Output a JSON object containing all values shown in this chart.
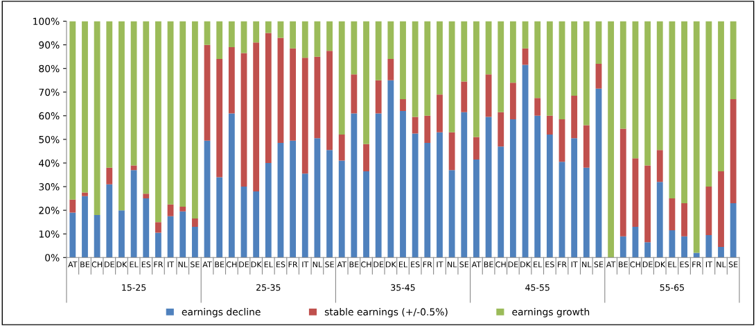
{
  "chart_data": {
    "type": "bar",
    "stacked": true,
    "categories": [
      "AT",
      "BE",
      "CH",
      "DE",
      "DK",
      "EL",
      "ES",
      "FR",
      "IT",
      "NL",
      "SE",
      "AT",
      "BE",
      "CH",
      "DE",
      "DK",
      "EL",
      "ES",
      "FR",
      "IT",
      "NL",
      "SE",
      "AT",
      "BE",
      "CH",
      "DE",
      "DK",
      "EL",
      "ES",
      "FR",
      "IT",
      "NL",
      "SE",
      "AT",
      "BE",
      "CH",
      "DE",
      "DK",
      "EL",
      "ES",
      "FR",
      "IT",
      "NL",
      "SE",
      "AT",
      "BE",
      "CH",
      "DE",
      "DK",
      "EL",
      "ES",
      "FR",
      "IT",
      "NL",
      "SE"
    ],
    "series": [
      {
        "name": "earnings decline",
        "color": "#4f81bd",
        "values": [
          19,
          26,
          18,
          31,
          20,
          37,
          25,
          10.5,
          17.5,
          19.5,
          13,
          49.5,
          34,
          61,
          30,
          28,
          40,
          48.5,
          49.5,
          35.5,
          50.5,
          45.5,
          41,
          61,
          36.5,
          61,
          75,
          62,
          52.5,
          48.5,
          53,
          37,
          61.5,
          41.5,
          59.5,
          47,
          58.5,
          81.5,
          60,
          52,
          40.5,
          50.5,
          38,
          71.5,
          0,
          9,
          13,
          6.5,
          32,
          11.5,
          9,
          2,
          9.5,
          4.5,
          23
        ]
      },
      {
        "name": "stable earnings (+/-0.5%)",
        "color": "#c0504d",
        "values": [
          5.5,
          1.5,
          0,
          7,
          0,
          2,
          2,
          4.5,
          5,
          2,
          3.5,
          40.5,
          50,
          28,
          56.5,
          63,
          55,
          44.5,
          39,
          49,
          34.5,
          42,
          11,
          16.5,
          11.5,
          14,
          9,
          5,
          7,
          11.5,
          16,
          16,
          13,
          9.5,
          18,
          14.5,
          15.5,
          7,
          7.5,
          8,
          18,
          18,
          18,
          10.5,
          0,
          45.5,
          29,
          32.5,
          13.5,
          13.5,
          14,
          0,
          20.5,
          32,
          44
        ]
      },
      {
        "name": "earnings growth",
        "color": "#9bbb59",
        "values": [
          75.5,
          72.5,
          82,
          62,
          80,
          61,
          73,
          85,
          77.5,
          78.5,
          83.5,
          10,
          16,
          11,
          13.5,
          9,
          5,
          7,
          11.5,
          15.5,
          15,
          12.5,
          48,
          22.5,
          52,
          25,
          16,
          33,
          40.5,
          40,
          31,
          47,
          25.5,
          49,
          22.5,
          38.5,
          26,
          11.5,
          32.5,
          40,
          41.5,
          31.5,
          44,
          18,
          100,
          45.5,
          58,
          61,
          54.5,
          75,
          77,
          98,
          70,
          63.5,
          33
        ]
      }
    ],
    "ylim": [
      0,
      100
    ],
    "yticks": [
      {
        "value": 0,
        "label": "0%"
      },
      {
        "value": 10,
        "label": "10%"
      },
      {
        "value": 20,
        "label": "20%"
      },
      {
        "value": 30,
        "label": "30%"
      },
      {
        "value": 40,
        "label": "40%"
      },
      {
        "value": 50,
        "label": "50%"
      },
      {
        "value": 60,
        "label": "60%"
      },
      {
        "value": 70,
        "label": "70%"
      },
      {
        "value": 80,
        "label": "80%"
      },
      {
        "value": 90,
        "label": "90%"
      },
      {
        "value": 100,
        "label": "100%"
      }
    ],
    "annotations": [
      "15-25",
      "25-35",
      "35-45",
      "45-55",
      "55-65"
    ],
    "legend": "bottom",
    "grid": false
  }
}
